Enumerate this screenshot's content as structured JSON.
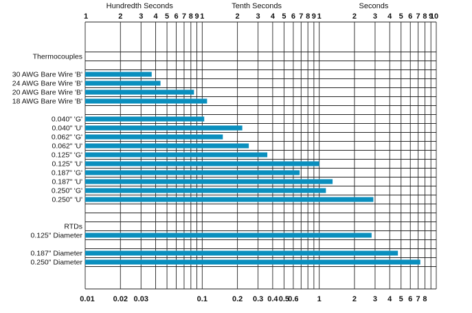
{
  "chart_data": {
    "type": "bar",
    "orientation": "horizontal",
    "x_scale": "log",
    "xlim": [
      0.01,
      10
    ],
    "grid": true,
    "legend": "none",
    "bar_color": "#0a8fbe",
    "top_axis": {
      "group_labels": [
        "Hundredth Seconds",
        "Tenth Seconds",
        "Seconds"
      ],
      "ticks": [
        {
          "value": 0.01,
          "label": "1"
        },
        {
          "value": 0.02,
          "label": "2"
        },
        {
          "value": 0.03,
          "label": "3"
        },
        {
          "value": 0.04,
          "label": "4"
        },
        {
          "value": 0.05,
          "label": "5"
        },
        {
          "value": 0.06,
          "label": "6"
        },
        {
          "value": 0.07,
          "label": "7"
        },
        {
          "value": 0.08,
          "label": "8"
        },
        {
          "value": 0.09,
          "label": "9"
        },
        {
          "value": 0.1,
          "label": "1"
        },
        {
          "value": 0.2,
          "label": "2"
        },
        {
          "value": 0.3,
          "label": "3"
        },
        {
          "value": 0.4,
          "label": "4"
        },
        {
          "value": 0.5,
          "label": "5"
        },
        {
          "value": 0.6,
          "label": "6"
        },
        {
          "value": 0.7,
          "label": "7"
        },
        {
          "value": 0.8,
          "label": "8"
        },
        {
          "value": 0.9,
          "label": "9"
        },
        {
          "value": 1,
          "label": "1"
        },
        {
          "value": 2,
          "label": "2"
        },
        {
          "value": 3,
          "label": "3"
        },
        {
          "value": 4,
          "label": "4"
        },
        {
          "value": 5,
          "label": "5"
        },
        {
          "value": 6,
          "label": "6"
        },
        {
          "value": 7,
          "label": "7"
        },
        {
          "value": 8,
          "label": "8"
        },
        {
          "value": 9,
          "label": "9"
        },
        {
          "value": 10,
          "label": "10"
        }
      ]
    },
    "bottom_axis": {
      "ticks": [
        {
          "value": 0.01,
          "label": "0.01"
        },
        {
          "value": 0.02,
          "label": "0.02"
        },
        {
          "value": 0.03,
          "label": "0.03"
        },
        {
          "value": 0.1,
          "label": "0.1"
        },
        {
          "value": 0.2,
          "label": "0.2"
        },
        {
          "value": 0.3,
          "label": "0.3"
        },
        {
          "value": 0.4,
          "label": "0.4"
        },
        {
          "value": 0.5,
          "label": "0.5"
        },
        {
          "value": 0.6,
          "label": "0.6"
        },
        {
          "value": 1,
          "label": "1"
        },
        {
          "value": 2,
          "label": "2"
        },
        {
          "value": 3,
          "label": "3"
        },
        {
          "value": 4,
          "label": "4"
        },
        {
          "value": 5,
          "label": "5"
        },
        {
          "value": 6,
          "label": "6"
        },
        {
          "value": 7,
          "label": "7"
        },
        {
          "value": 8,
          "label": "8"
        }
      ]
    },
    "rows": [
      {
        "label": "Thermocouples",
        "value": null
      },
      {
        "label": "",
        "value": null
      },
      {
        "label": "30 AWG Bare Wire 'B'",
        "value": 0.037
      },
      {
        "label": "24 AWG Bare Wire 'B'",
        "value": 0.044
      },
      {
        "label": "20 AWG Bare Wire 'B'",
        "value": 0.085
      },
      {
        "label": "18 AWG Bare Wire 'B'",
        "value": 0.11
      },
      {
        "label": "",
        "value": null
      },
      {
        "label": "0.040\" 'G'",
        "value": 0.104
      },
      {
        "label": "0.040\" 'U'",
        "value": 0.22
      },
      {
        "label": "0.062\" 'G'",
        "value": 0.15
      },
      {
        "label": "0.062\" 'U'",
        "value": 0.25
      },
      {
        "label": "0.125\" 'G'",
        "value": 0.36
      },
      {
        "label": "0.125\" 'U'",
        "value": 1.0
      },
      {
        "label": "0.187\" 'G'",
        "value": 0.68
      },
      {
        "label": "0.187\" 'U'",
        "value": 1.3
      },
      {
        "label": "0.250\" 'G'",
        "value": 1.14
      },
      {
        "label": "0.250\" 'U'",
        "value": 2.9
      },
      {
        "label": "",
        "value": null
      },
      {
        "label": "",
        "value": null
      },
      {
        "label": "RTDs",
        "value": null
      },
      {
        "label": "0.125\" Diameter",
        "value": 2.8
      },
      {
        "label": "",
        "value": null
      },
      {
        "label": "0.187\" Diameter",
        "value": 4.7
      },
      {
        "label": "0.250\" Diameter",
        "value": 7.3
      }
    ]
  }
}
